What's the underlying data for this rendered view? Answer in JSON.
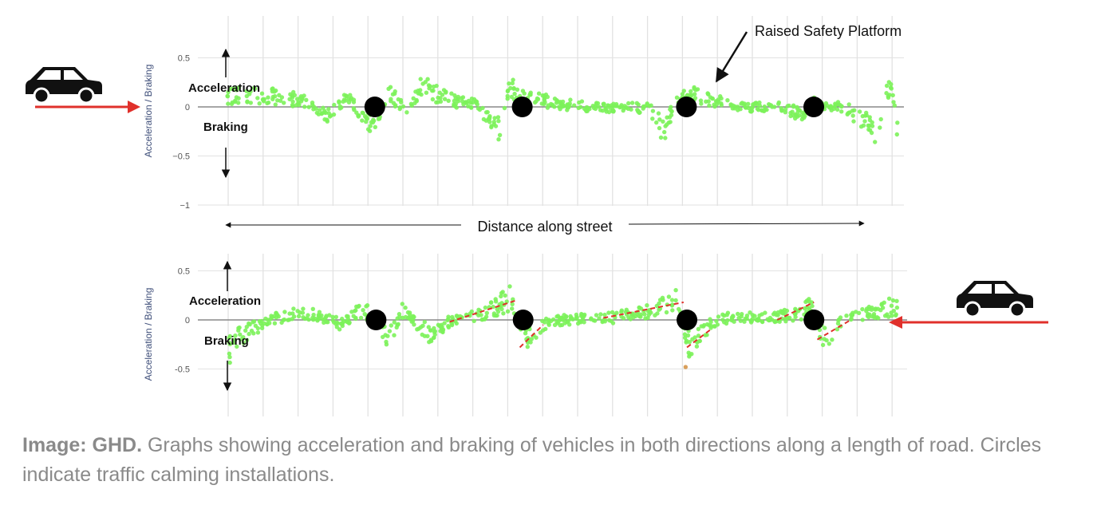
{
  "caption": {
    "source": "Image: GHD.",
    "text": "Graphs showing acceleration and braking of vehicles in both directions along a length of road. Circles indicate traffic calming installations."
  },
  "annotations": {
    "platform": "Raised Safety Platform",
    "distance": "Distance along street",
    "acceleration": "Acceleration",
    "braking": "Braking"
  },
  "icons": {
    "car": "car-icon",
    "arrow": "direction-arrow"
  },
  "colors": {
    "points": "#7cf25a",
    "trend": "#e0302b",
    "installation": "#000000",
    "arrow": "#e0302b",
    "grid": "#e2e2e2",
    "zero_line": "#888888",
    "outlier": "#d9a05c"
  },
  "chart_data": [
    {
      "type": "scatter",
      "direction": "left-to-right",
      "ylabel": "Acceleration / Braking",
      "ylim": [
        -1,
        0.6
      ],
      "yticks": [
        "0.5",
        "0",
        "−0.5",
        "−1"
      ],
      "ytick_values": [
        0.5,
        0,
        -0.5,
        -1
      ],
      "xlim": [
        0,
        100
      ],
      "grid": true,
      "installations_x": [
        22,
        44,
        68.5,
        87.5
      ],
      "profile": [
        [
          0,
          0.12
        ],
        [
          4,
          0.12
        ],
        [
          8,
          0.1
        ],
        [
          12,
          0.05
        ],
        [
          15,
          -0.1
        ],
        [
          18,
          0.1
        ],
        [
          20,
          -0.08
        ],
        [
          22,
          -0.2
        ],
        [
          24,
          0.15
        ],
        [
          27,
          -0.05
        ],
        [
          29,
          0.2
        ],
        [
          33,
          0.08
        ],
        [
          37,
          0.02
        ],
        [
          41,
          -0.25
        ],
        [
          42,
          0.2
        ],
        [
          44,
          0.1
        ],
        [
          48,
          0.05
        ],
        [
          54,
          0.0
        ],
        [
          59,
          -0.02
        ],
        [
          63,
          0.0
        ],
        [
          65,
          -0.25
        ],
        [
          67,
          0.05
        ],
        [
          69,
          0.15
        ],
        [
          73,
          0.05
        ],
        [
          78,
          0.0
        ],
        [
          83,
          0.0
        ],
        [
          86,
          -0.1
        ],
        [
          87.5,
          0.05
        ],
        [
          92,
          0.0
        ],
        [
          95,
          -0.15
        ],
        [
          97,
          -0.25
        ],
        [
          98,
          0.1
        ],
        [
          99,
          0.2
        ],
        [
          100,
          -0.25
        ]
      ]
    },
    {
      "type": "scatter",
      "direction": "right-to-left",
      "ylabel": "Acceleration / Braking",
      "ylim": [
        -1,
        0.6
      ],
      "yticks": [
        "0.5",
        "0",
        "-0.5"
      ],
      "ytick_values": [
        0.5,
        0,
        -0.5
      ],
      "xlim": [
        0,
        100
      ],
      "grid": true,
      "installations_x": [
        22,
        44,
        68.5,
        87.5
      ],
      "profile": [
        [
          0,
          -0.3
        ],
        [
          2,
          -0.15
        ],
        [
          6,
          0.0
        ],
        [
          9,
          0.05
        ],
        [
          13,
          0.05
        ],
        [
          17,
          -0.05
        ],
        [
          20,
          0.12
        ],
        [
          22,
          0.0
        ],
        [
          24,
          -0.2
        ],
        [
          26,
          0.1
        ],
        [
          30,
          -0.15
        ],
        [
          33,
          -0.02
        ],
        [
          38,
          0.05
        ],
        [
          42,
          0.22
        ],
        [
          44,
          -0.2
        ],
        [
          47,
          -0.05
        ],
        [
          50,
          0.0
        ],
        [
          57,
          0.02
        ],
        [
          63,
          0.08
        ],
        [
          67,
          0.2
        ],
        [
          69,
          -0.3
        ],
        [
          71,
          -0.1
        ],
        [
          74,
          0.02
        ],
        [
          80,
          0.02
        ],
        [
          85,
          0.05
        ],
        [
          87,
          0.15
        ],
        [
          89,
          -0.2
        ],
        [
          92,
          0.0
        ],
        [
          95,
          0.05
        ],
        [
          100,
          0.15
        ]
      ],
      "trend_lines": [
        [
          [
            33,
            -0.02
          ],
          [
            43,
            0.2
          ]
        ],
        [
          [
            43.5,
            -0.28
          ],
          [
            47,
            -0.05
          ]
        ],
        [
          [
            56,
            0.02
          ],
          [
            68,
            0.18
          ]
        ],
        [
          [
            68.5,
            -0.28
          ],
          [
            72,
            -0.1
          ]
        ],
        [
          [
            82,
            0.0
          ],
          [
            87.5,
            0.18
          ]
        ],
        [
          [
            88,
            -0.2
          ],
          [
            93,
            0.0
          ]
        ]
      ],
      "outliers": [
        [
          68.3,
          -0.48
        ]
      ]
    }
  ]
}
